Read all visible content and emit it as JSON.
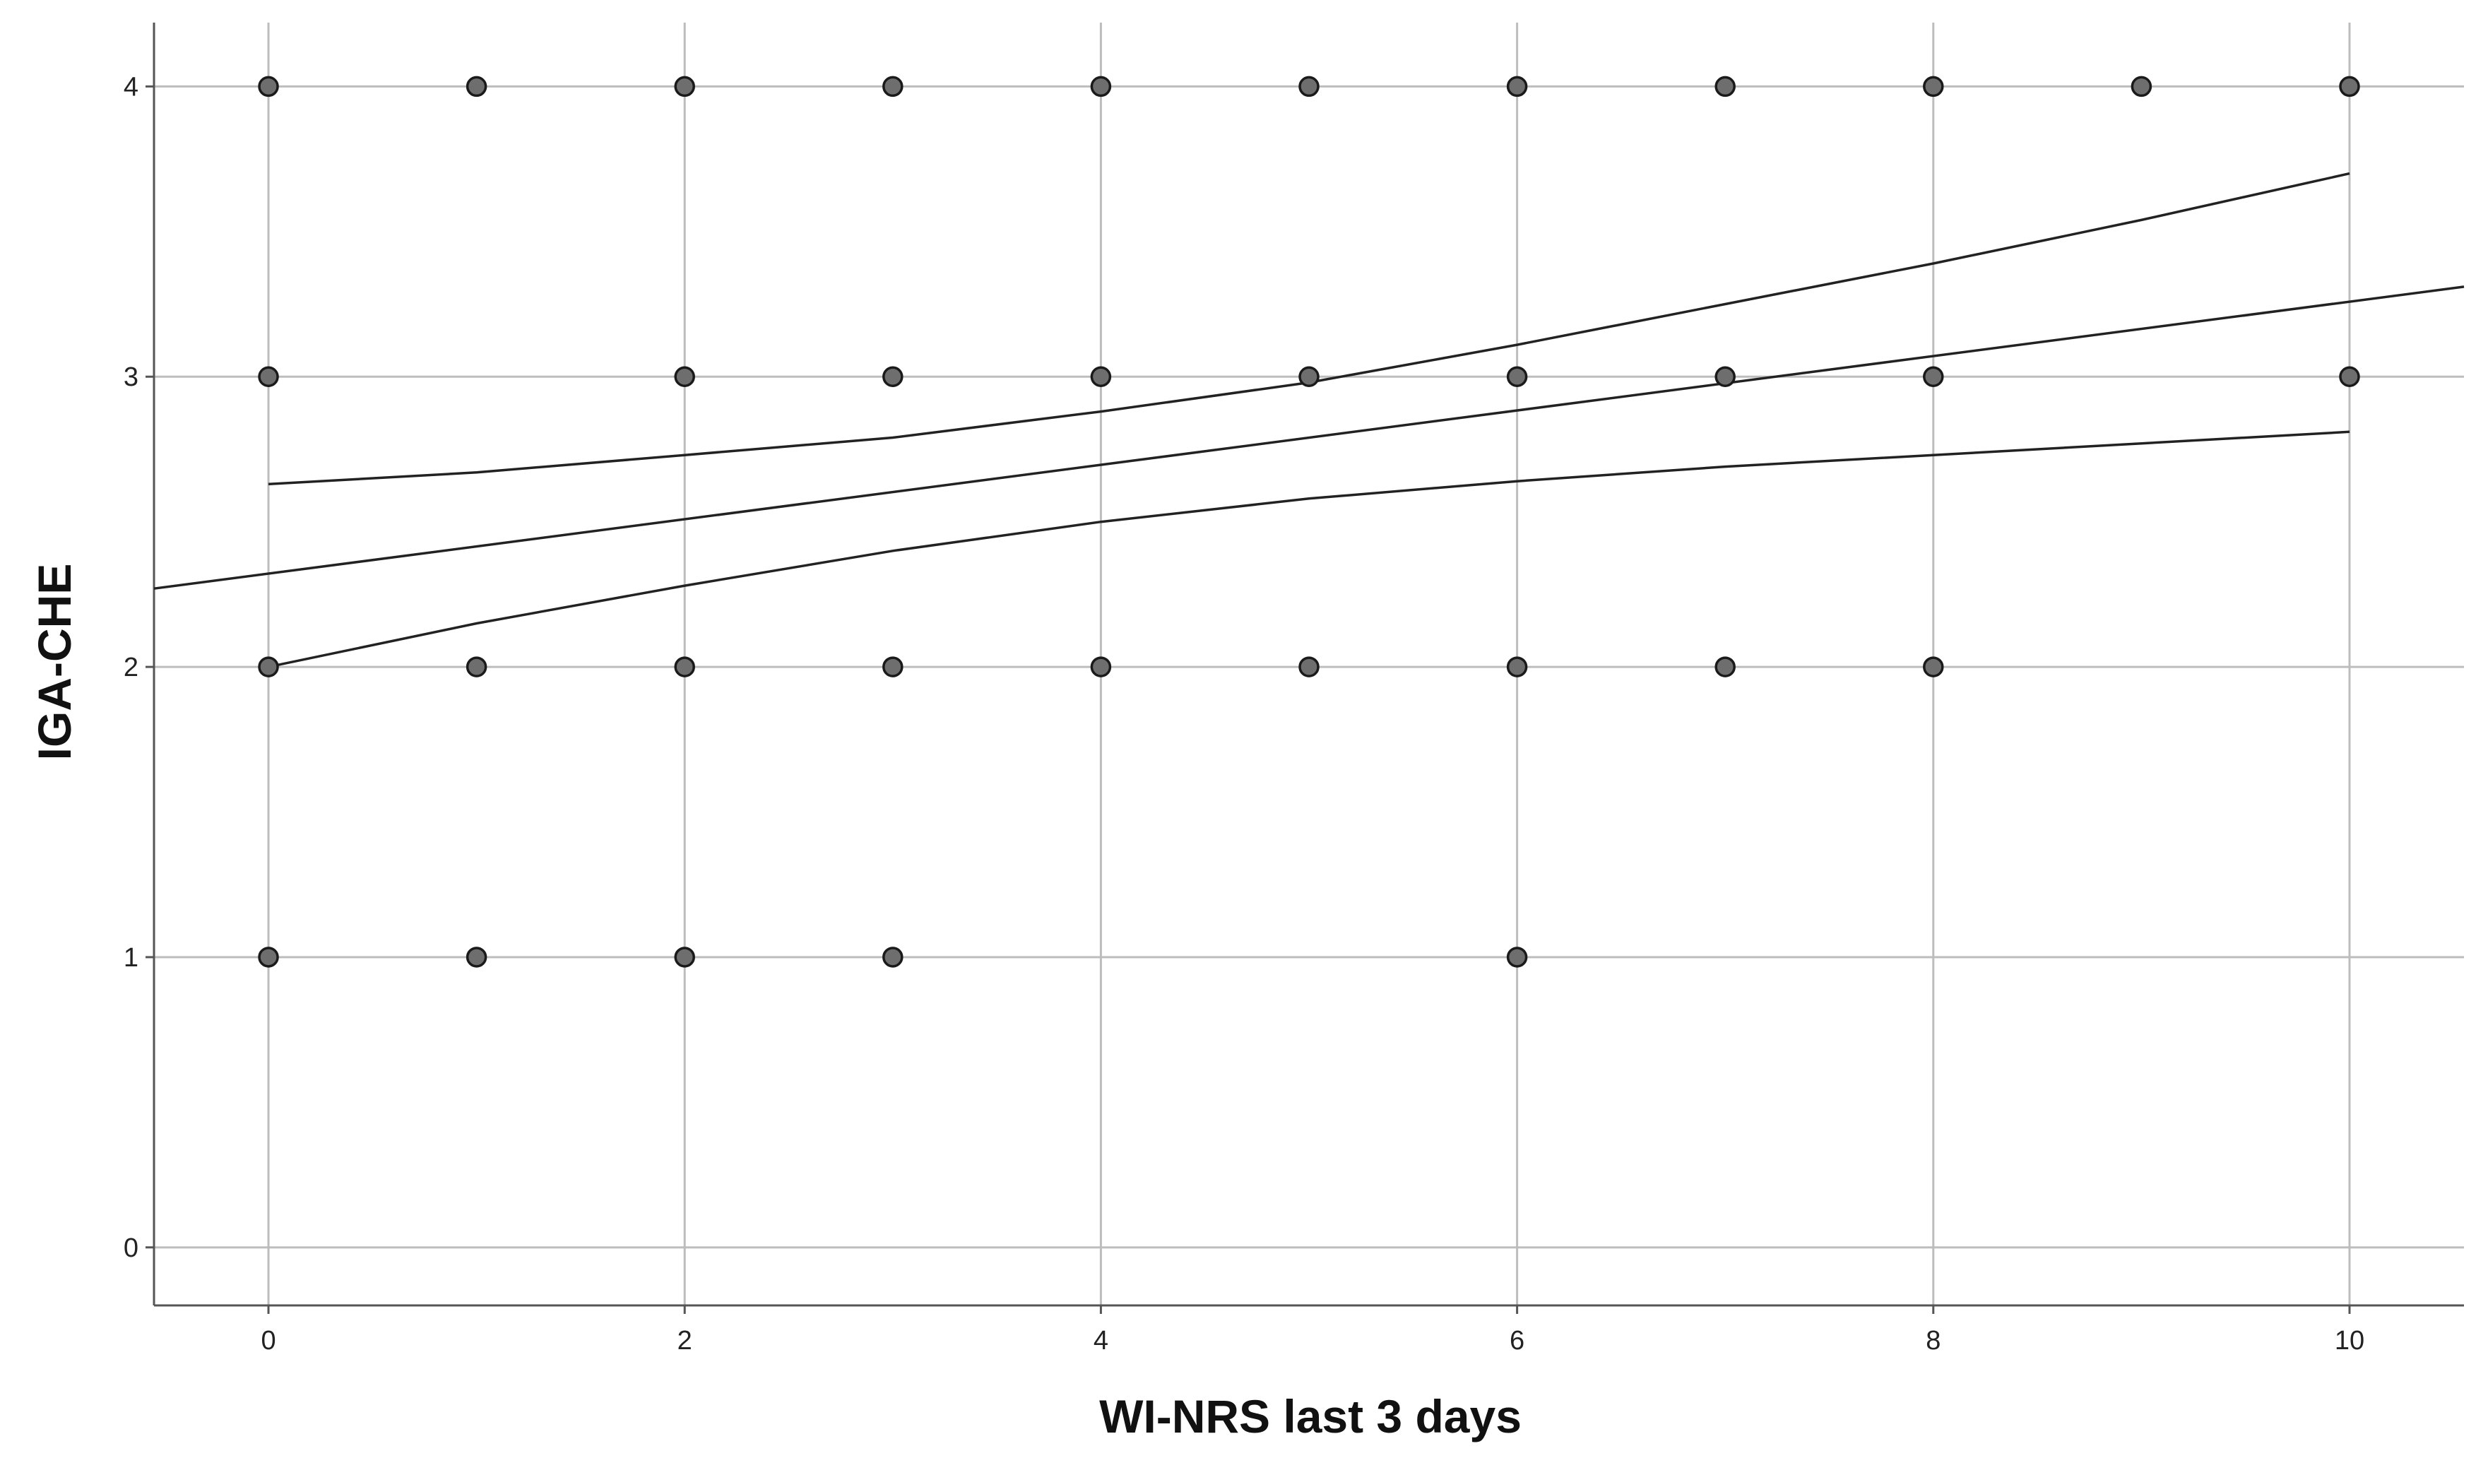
{
  "chart_data": {
    "type": "scatter",
    "title": "",
    "xlabel": "WI-NRS last 3 days",
    "ylabel": "IGA-CHE",
    "xlim": [
      -0.55,
      10.55
    ],
    "ylim": [
      -0.2,
      4.22
    ],
    "x_ticks": [
      "0",
      "2",
      "4",
      "6",
      "8",
      "10"
    ],
    "y_ticks": [
      "0",
      "1",
      "2",
      "3",
      "4"
    ],
    "grid": true,
    "legend": "none",
    "points": [
      {
        "x": 0,
        "y": 4
      },
      {
        "x": 1,
        "y": 4
      },
      {
        "x": 2,
        "y": 4
      },
      {
        "x": 3,
        "y": 4
      },
      {
        "x": 4,
        "y": 4
      },
      {
        "x": 5,
        "y": 4
      },
      {
        "x": 6,
        "y": 4
      },
      {
        "x": 7,
        "y": 4
      },
      {
        "x": 8,
        "y": 4
      },
      {
        "x": 9,
        "y": 4
      },
      {
        "x": 10,
        "y": 4
      },
      {
        "x": 0,
        "y": 3
      },
      {
        "x": 2,
        "y": 3
      },
      {
        "x": 3,
        "y": 3
      },
      {
        "x": 4,
        "y": 3
      },
      {
        "x": 5,
        "y": 3
      },
      {
        "x": 6,
        "y": 3
      },
      {
        "x": 7,
        "y": 3
      },
      {
        "x": 8,
        "y": 3
      },
      {
        "x": 10,
        "y": 3
      },
      {
        "x": 0,
        "y": 2
      },
      {
        "x": 1,
        "y": 2
      },
      {
        "x": 2,
        "y": 2
      },
      {
        "x": 3,
        "y": 2
      },
      {
        "x": 4,
        "y": 2
      },
      {
        "x": 5,
        "y": 2
      },
      {
        "x": 6,
        "y": 2
      },
      {
        "x": 7,
        "y": 2
      },
      {
        "x": 8,
        "y": 2
      },
      {
        "x": 0,
        "y": 1
      },
      {
        "x": 1,
        "y": 1
      },
      {
        "x": 2,
        "y": 1
      },
      {
        "x": 3,
        "y": 1
      },
      {
        "x": 6,
        "y": 1
      }
    ],
    "fit_line": {
      "x": [
        -0.55,
        10.55
      ],
      "y": [
        2.27,
        3.31
      ]
    },
    "confidence_upper": {
      "x": [
        0,
        1,
        2,
        3,
        4,
        5,
        6,
        7,
        8,
        9,
        10
      ],
      "y": [
        2.63,
        2.67,
        2.73,
        2.79,
        2.88,
        2.98,
        3.11,
        3.25,
        3.39,
        3.54,
        3.7
      ]
    },
    "confidence_lower": {
      "x": [
        0,
        1,
        2,
        3,
        4,
        5,
        6,
        7,
        8,
        9,
        10
      ],
      "y": [
        2.0,
        2.15,
        2.28,
        2.4,
        2.5,
        2.58,
        2.64,
        2.69,
        2.73,
        2.77,
        2.81
      ]
    },
    "colors": {
      "marker_fill": "#6e6e6e",
      "marker_stroke": "#1a1a1a",
      "line": "#222222",
      "grid": "#bdbdbd",
      "axis": "#555555"
    }
  }
}
